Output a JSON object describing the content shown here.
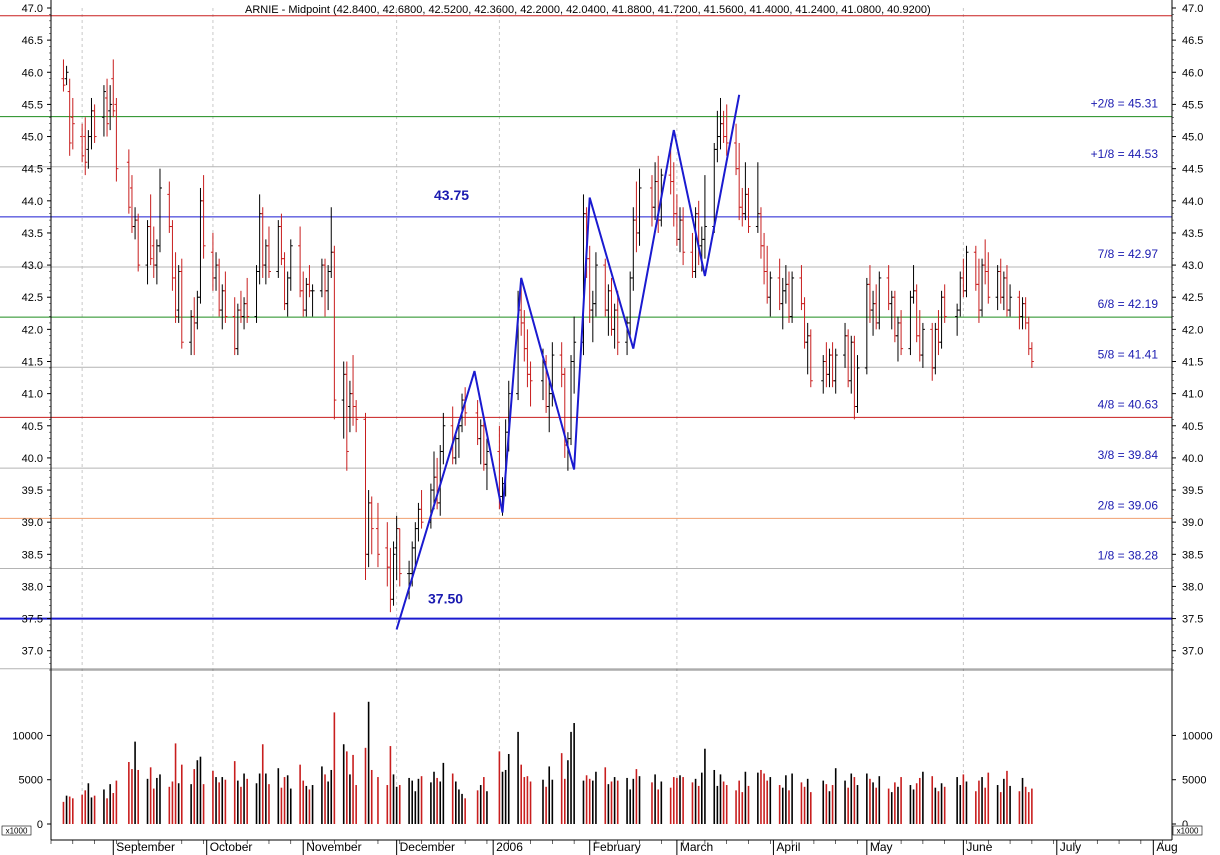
{
  "chart_data": {
    "type": "bar",
    "subtype": "ohlc-with-volume",
    "title": "ARNIE - Midpoint (42.8400, 42.6800, 42.5200, 42.3600, 42.2000, 42.0400, 41.8800, 41.7200, 41.5600, 41.4000, 41.2400, 41.0800, 40.9200)",
    "price_axis": {
      "ylim": [
        36.7,
        47.0
      ],
      "ticks": [
        "47.0",
        "46.5",
        "46.0",
        "45.5",
        "45.0",
        "44.5",
        "44.0",
        "43.5",
        "43.0",
        "42.5",
        "42.0",
        "41.5",
        "41.0",
        "40.5",
        "40.0",
        "39.5",
        "39.0",
        "38.5",
        "38.0",
        "37.5",
        "37.0"
      ]
    },
    "volume_axis": {
      "ylim": [
        0,
        14000
      ],
      "ticks": [
        "10000",
        "5000",
        "0"
      ],
      "scale_label": "x1000"
    },
    "months": [
      "September",
      "October",
      "November",
      "December",
      "2006",
      "February",
      "March",
      "April",
      "May",
      "June",
      "July",
      "Aug"
    ],
    "levels": [
      {
        "label": "",
        "value": 46.88,
        "color": "#c81e1e"
      },
      {
        "label": "+2/8 = 45.31",
        "value": 45.31,
        "color": "#1e8c1e"
      },
      {
        "label": "+1/8 = 44.53",
        "value": 44.53,
        "color": "#b4b4b4"
      },
      {
        "label": "43.75",
        "value": 43.75,
        "color": "#1a1ad0"
      },
      {
        "label": "7/8 = 42.97",
        "value": 42.97,
        "color": "#b4b4b4"
      },
      {
        "label": "6/8 = 42.19",
        "value": 42.19,
        "color": "#1e8c1e"
      },
      {
        "label": "5/8 = 41.41",
        "value": 41.41,
        "color": "#b4b4b4"
      },
      {
        "label": "4/8 = 40.63",
        "value": 40.63,
        "color": "#c81e1e"
      },
      {
        "label": "3/8 = 39.84",
        "value": 39.84,
        "color": "#b4b4b4"
      },
      {
        "label": "2/8 = 39.06",
        "value": 39.06,
        "color": "#f0a070"
      },
      {
        "label": "1/8 = 38.28",
        "value": 38.28,
        "color": "#b4b4b4"
      },
      {
        "label": "37.50",
        "value": 37.5,
        "color": "#1a1ad0"
      },
      {
        "label": "",
        "value": 36.72,
        "color": "#b4b4b4"
      }
    ],
    "zigzag": {
      "color": "#1a1ad0",
      "points": [
        {
          "date": "2005-12-01",
          "value": 37.33
        },
        {
          "date": "2005-12-26",
          "value": 41.35
        },
        {
          "date": "2006-01-04",
          "value": 39.15
        },
        {
          "date": "2006-01-10",
          "value": 42.8
        },
        {
          "date": "2006-01-27",
          "value": 39.82
        },
        {
          "date": "2006-02-01",
          "value": 44.05
        },
        {
          "date": "2006-02-15",
          "value": 41.7
        },
        {
          "date": "2006-02-28",
          "value": 45.1
        },
        {
          "date": "2006-03-10",
          "value": 42.83
        },
        {
          "date": "2006-03-21",
          "value": 45.65
        }
      ]
    },
    "price_series_key": "bars",
    "volume_series_key": "volumes"
  }
}
